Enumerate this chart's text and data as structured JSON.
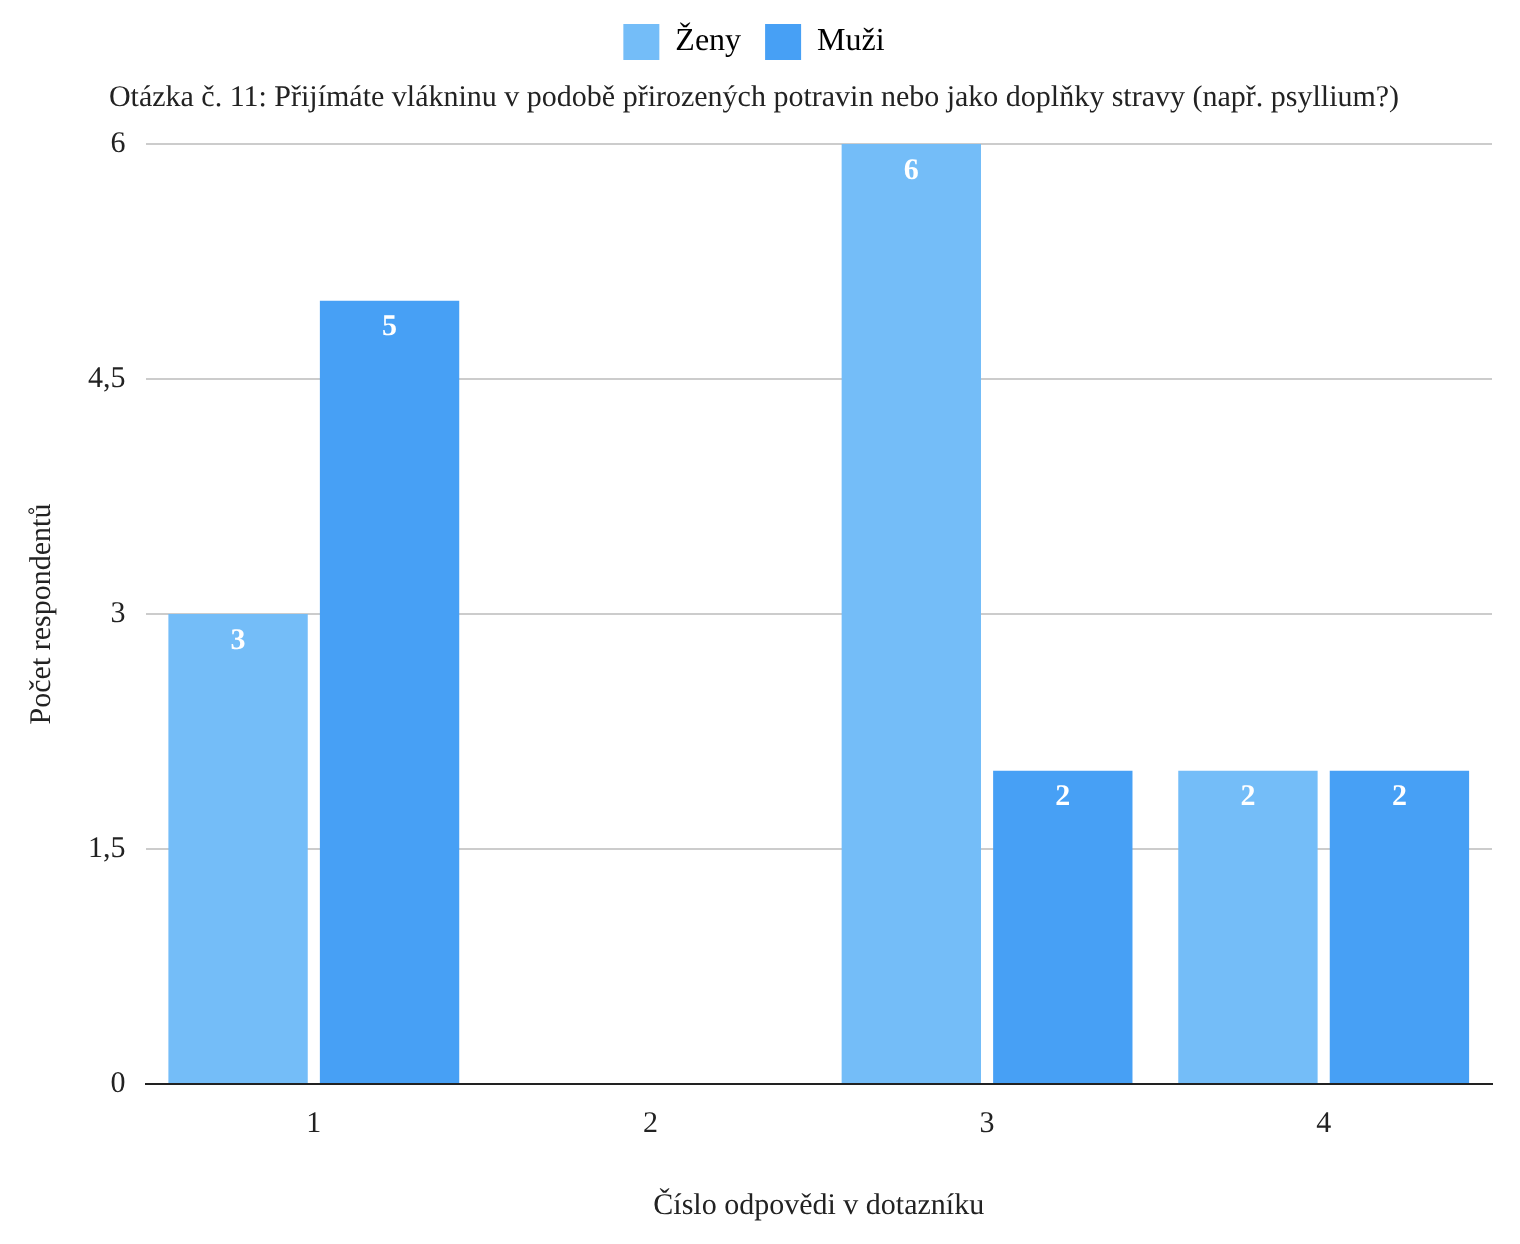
{
  "chart_data": {
    "type": "bar",
    "title": "Otázka č. 11: Přijímáte vlákninu v podobě přirozených potravin nebo jako doplňky stravy (např. psyllium?)",
    "xlabel": "Číslo odpovědi v dotazníku",
    "ylabel": "Počet respondentů",
    "categories": [
      "1",
      "2",
      "3",
      "4"
    ],
    "series": [
      {
        "name": "Ženy",
        "color": "#74bdf8",
        "values": [
          3,
          null,
          6,
          2
        ]
      },
      {
        "name": "Muži",
        "color": "#47a0f5",
        "values": [
          5,
          null,
          2,
          2
        ]
      }
    ],
    "ylim": [
      0,
      6
    ],
    "yticks": [
      0,
      {
        "value": 1.5,
        "label": "1,5"
      },
      3,
      {
        "value": 4.5,
        "label": "4,5"
      },
      6
    ],
    "grid": "y",
    "legend": "top",
    "data_labels": true
  }
}
